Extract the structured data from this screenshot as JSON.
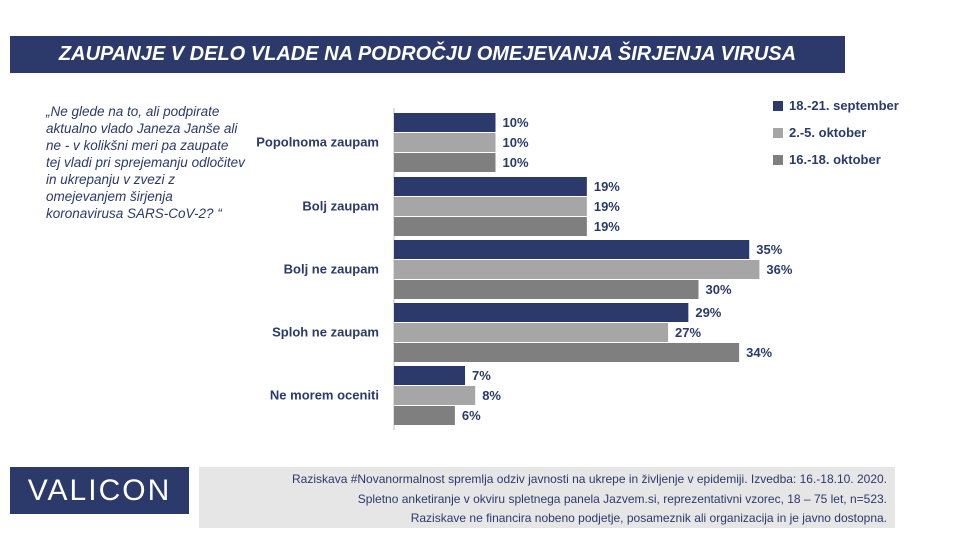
{
  "title": "ZAUPANJE V DELO VLADE NA PODROČJU OMEJEVANJA ŠIRJENJA VIRUSA",
  "question": "„Ne glede na to, ali podpirate aktualno vlado Janeza Janše ali ne - v kolikšni meri pa zaupate tej vladi pri sprejemanju odločitev in ukrepanju v zvezi z omejevanjem širjenja koronavirusa SARS-CoV-2? “",
  "brand": "VALICON",
  "footnote": {
    "line1": "Raziskava #Novanormalnost spremlja odziv javnosti na ukrepe in življenje v epidemiji. Izvedba: 16.-18.10. 2020.",
    "line2": "Spletno anketiranje v okviru spletnega panela Jazvem.si, reprezentativni vzorec, 18 – 75 let, n=523.",
    "line3": "Raziskave ne financira nobeno podjetje, posameznik ali organizacija in je javno dostopna."
  },
  "colors": {
    "navy": "#2b3a6b",
    "light_gray": "#a6a6a6",
    "dark_gray": "#7f7f7f",
    "footer_bg": "#e6e6e6"
  },
  "chart_data": {
    "type": "bar",
    "orientation": "horizontal",
    "categories": [
      "Popolnoma zaupam",
      "Bolj zaupam",
      "Bolj ne zaupam",
      "Sploh ne zaupam",
      "Ne morem oceniti"
    ],
    "series": [
      {
        "name": "18.-21. september",
        "values": [
          10,
          19,
          35,
          29,
          7
        ],
        "color": "#2b3a6b"
      },
      {
        "name": "2.-5. oktober",
        "values": [
          10,
          19,
          36,
          27,
          8
        ],
        "color": "#a6a6a6"
      },
      {
        "name": "16.-18. oktober",
        "values": [
          10,
          19,
          30,
          34,
          6
        ],
        "color": "#7f7f7f"
      }
    ],
    "value_suffix": "%",
    "xlim": [
      0,
      40
    ],
    "legend_position": "top-right",
    "grid": false
  }
}
